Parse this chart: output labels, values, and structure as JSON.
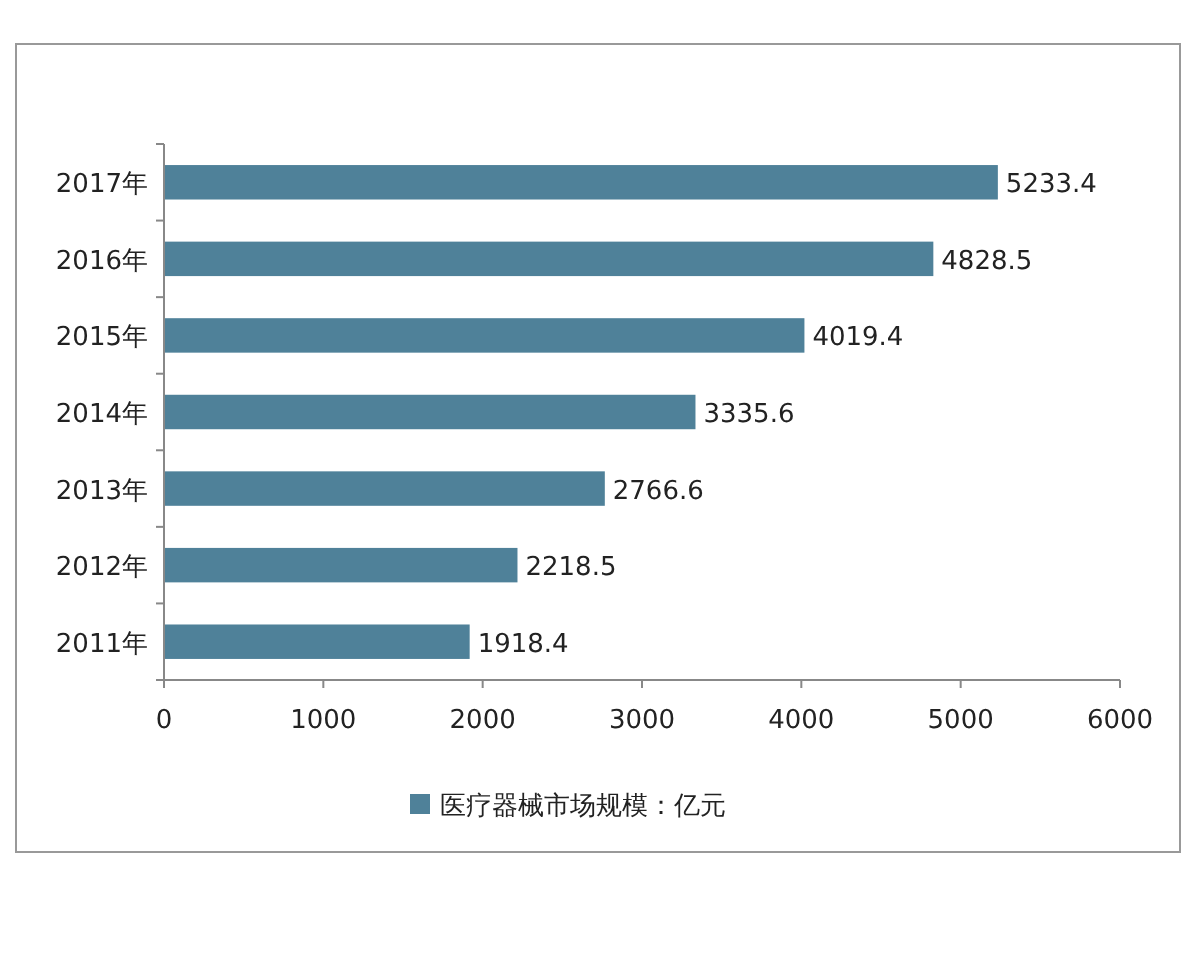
{
  "chart_data": {
    "type": "bar",
    "orientation": "horizontal",
    "categories": [
      "2017年",
      "2016年",
      "2015年",
      "2014年",
      "2013年",
      "2012年",
      "2011年"
    ],
    "series": [
      {
        "name": "医疗器械市场规模：亿元",
        "color": "#4f8199",
        "values": [
          5233.4,
          4828.5,
          4019.4,
          3335.6,
          2766.6,
          2218.5,
          1918.4
        ]
      }
    ],
    "xlim": [
      0,
      6000
    ],
    "xticks": [
      0,
      1000,
      2000,
      3000,
      4000,
      5000,
      6000
    ],
    "data_labels": true,
    "legend": "bottom"
  }
}
